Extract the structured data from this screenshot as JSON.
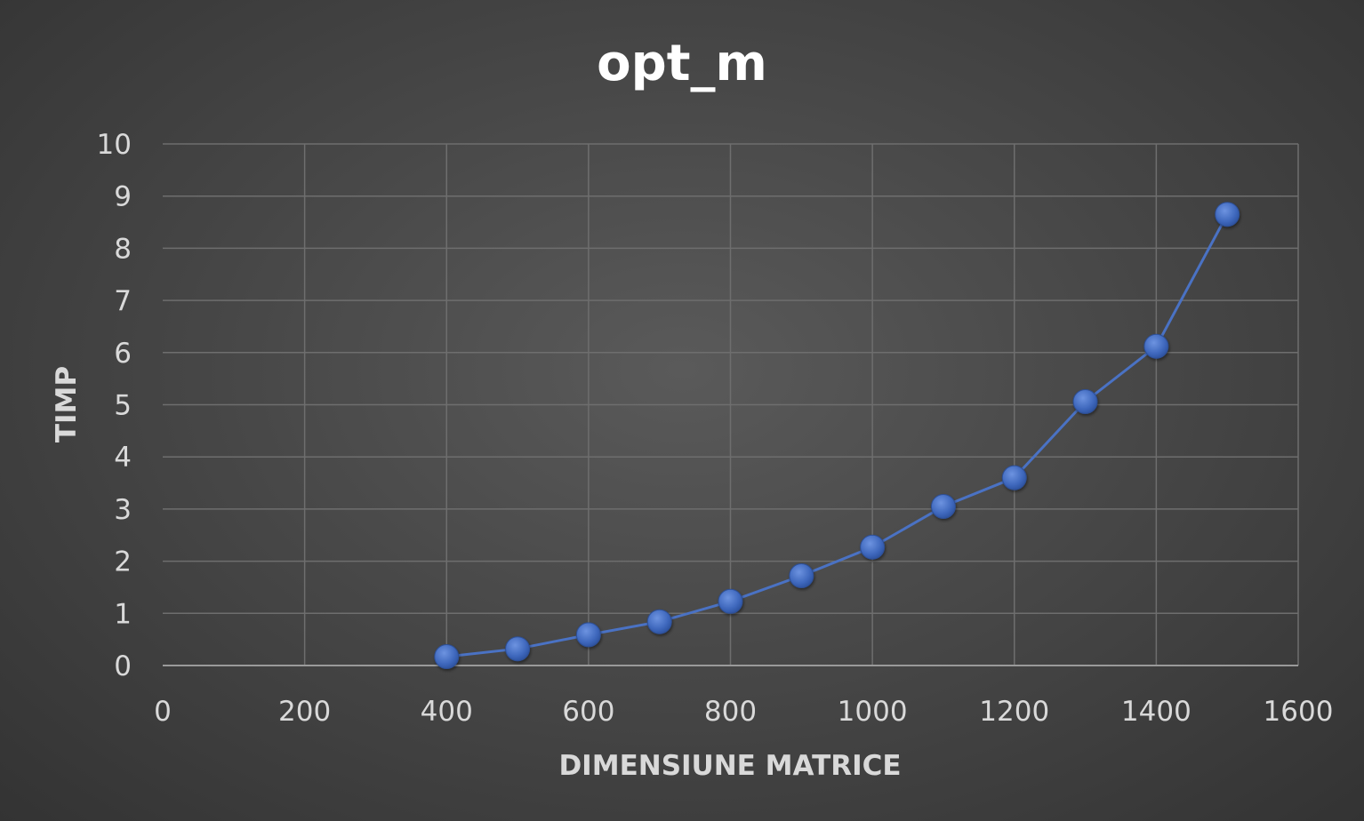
{
  "chart_data": {
    "type": "scatter",
    "title": "opt_m",
    "xlabel": "DIMENSIUNE MATRICE",
    "ylabel": "TIMP",
    "xlim": [
      0,
      1600
    ],
    "ylim": [
      0,
      10
    ],
    "xticks": [
      0,
      200,
      400,
      600,
      800,
      1000,
      1200,
      1400,
      1600
    ],
    "yticks": [
      0,
      1,
      2,
      3,
      4,
      5,
      6,
      7,
      8,
      9,
      10
    ],
    "grid": true,
    "legend": "none",
    "series": [
      {
        "color": "#4472c4",
        "points": [
          {
            "x": 400,
            "y": 0.17
          },
          {
            "x": 500,
            "y": 0.32
          },
          {
            "x": 600,
            "y": 0.59
          },
          {
            "x": 700,
            "y": 0.84
          },
          {
            "x": 800,
            "y": 1.23
          },
          {
            "x": 900,
            "y": 1.72
          },
          {
            "x": 1000,
            "y": 2.27
          },
          {
            "x": 1100,
            "y": 3.05
          },
          {
            "x": 1200,
            "y": 3.6
          },
          {
            "x": 1300,
            "y": 5.06
          },
          {
            "x": 1400,
            "y": 6.12
          },
          {
            "x": 1500,
            "y": 8.65
          }
        ]
      }
    ]
  }
}
